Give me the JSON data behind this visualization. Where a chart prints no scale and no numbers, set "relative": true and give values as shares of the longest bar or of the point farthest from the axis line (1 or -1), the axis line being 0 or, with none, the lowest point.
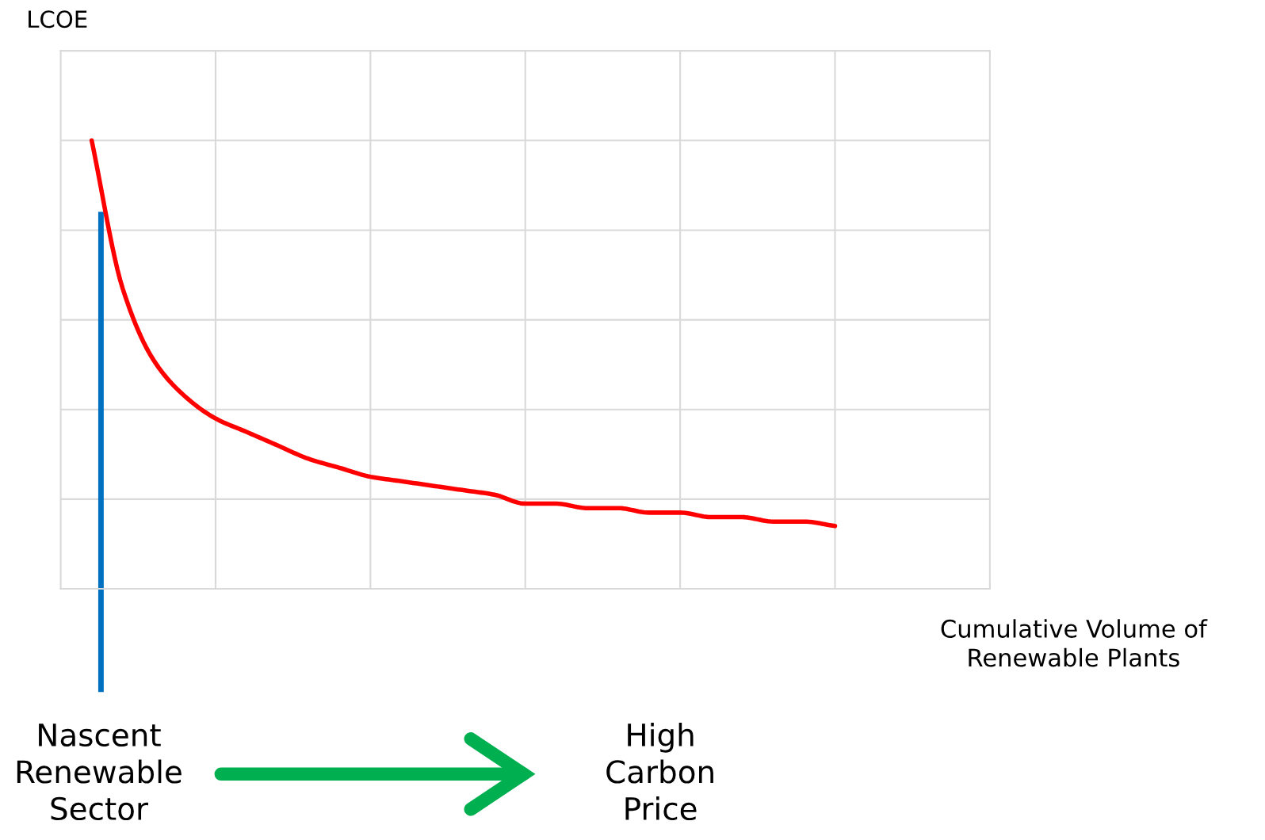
{
  "chart_data": {
    "type": "line",
    "relative": true,
    "ylabel": "LCOE",
    "xlabel": "Cumulative Volume of\nRenewable Plants",
    "categories": [
      null,
      null,
      null,
      null,
      null,
      null,
      null,
      null,
      null,
      null,
      null,
      null,
      null,
      null,
      null,
      null,
      null,
      null,
      null,
      null,
      null,
      null,
      null,
      null,
      null
    ],
    "series": [
      {
        "color": "#ff0000",
        "values": [
          1.0,
          0.67,
          0.51,
          0.43,
          0.38,
          0.35,
          0.32,
          0.29,
          0.27,
          0.25,
          0.24,
          0.23,
          0.22,
          0.21,
          0.19,
          0.19,
          0.18,
          0.18,
          0.17,
          0.17,
          0.16,
          0.16,
          0.15,
          0.15,
          0.14
        ]
      }
    ],
    "annotations": [
      "Nascent\nRenewable\nSector",
      "High\nCarbon\nPrice"
    ],
    "grid": true,
    "line_style": "solid",
    "marker": "none"
  }
}
